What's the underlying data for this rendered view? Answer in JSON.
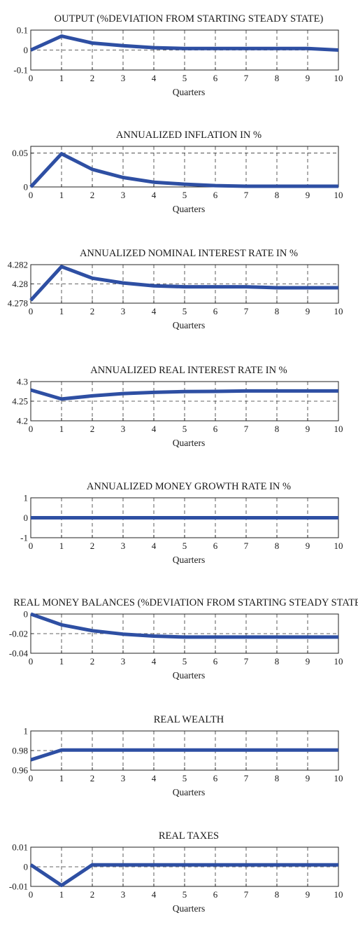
{
  "colors": {
    "line": "#2e4fa3",
    "axis": "#222222",
    "grid": "#333333"
  },
  "chart_data": [
    {
      "type": "line",
      "title": "OUTPUT (%DEVIATION FROM STARTING STEADY STATE)",
      "xlabel": "Quarters",
      "ylabel": "",
      "xlim": [
        0,
        10
      ],
      "ylim": [
        -0.1,
        0.1
      ],
      "xticks": [
        "0",
        "1",
        "2",
        "3",
        "4",
        "5",
        "6",
        "7",
        "8",
        "9",
        "10"
      ],
      "yticks": [
        "0.1",
        "0",
        "-0.1"
      ],
      "ytick_values": [
        0.1,
        0,
        -0.1
      ],
      "grid": true,
      "x": [
        0,
        1,
        2,
        3,
        4,
        5,
        6,
        7,
        8,
        9,
        10
      ],
      "series": [
        {
          "values": [
            0,
            0.07,
            0.035,
            0.022,
            0.012,
            0.008,
            0.008,
            0.008,
            0.008,
            0.008,
            0.0
          ]
        }
      ]
    },
    {
      "type": "line",
      "title": "ANNUALIZED INFLATION IN %",
      "xlabel": "Quarters",
      "ylabel": "",
      "xlim": [
        0,
        10
      ],
      "ylim": [
        0,
        0.06
      ],
      "xticks": [
        "0",
        "1",
        "2",
        "3",
        "4",
        "5",
        "6",
        "7",
        "8",
        "9",
        "10"
      ],
      "yticks": [
        "0.05",
        "0"
      ],
      "ytick_values": [
        0.05,
        0
      ],
      "grid": true,
      "x": [
        0,
        1,
        2,
        3,
        4,
        5,
        6,
        7,
        8,
        9,
        10
      ],
      "series": [
        {
          "values": [
            0,
            0.049,
            0.026,
            0.014,
            0.007,
            0.004,
            0.002,
            0.001,
            0.001,
            0.001,
            0.001
          ]
        }
      ]
    },
    {
      "type": "line",
      "title": "ANNUALIZED NOMINAL INTEREST RATE IN %",
      "xlabel": "Quarters",
      "ylabel": "",
      "xlim": [
        0,
        10
      ],
      "ylim": [
        4.278,
        4.282
      ],
      "xticks": [
        "0",
        "1",
        "2",
        "3",
        "4",
        "5",
        "6",
        "7",
        "8",
        "9",
        "10"
      ],
      "yticks": [
        "4.282",
        "4.28",
        "4.278"
      ],
      "ytick_values": [
        4.282,
        4.28,
        4.278
      ],
      "grid": true,
      "x": [
        0,
        1,
        2,
        3,
        4,
        5,
        6,
        7,
        8,
        9,
        10
      ],
      "series": [
        {
          "values": [
            4.2783,
            4.2818,
            4.2806,
            4.2801,
            4.2798,
            4.2797,
            4.2797,
            4.2797,
            4.2796,
            4.2796,
            4.2796
          ]
        }
      ]
    },
    {
      "type": "line",
      "title": "ANNUALIZED REAL INTEREST RATE IN %",
      "xlabel": "Quarters",
      "ylabel": "",
      "xlim": [
        0,
        10
      ],
      "ylim": [
        4.2,
        4.3
      ],
      "xticks": [
        "0",
        "1",
        "2",
        "3",
        "4",
        "5",
        "6",
        "7",
        "8",
        "9",
        "10"
      ],
      "yticks": [
        "4.3",
        "4.25",
        "4.2"
      ],
      "ytick_values": [
        4.3,
        4.25,
        4.2
      ],
      "grid": true,
      "x": [
        0,
        1,
        2,
        3,
        4,
        5,
        6,
        7,
        8,
        9,
        10
      ],
      "series": [
        {
          "values": [
            4.2785,
            4.2555,
            4.2635,
            4.2695,
            4.2725,
            4.2745,
            4.275,
            4.276,
            4.276,
            4.276,
            4.276
          ]
        }
      ]
    },
    {
      "type": "line",
      "title": "ANNUALIZED MONEY GROWTH RATE IN %",
      "xlabel": "Quarters",
      "ylabel": "",
      "xlim": [
        0,
        10
      ],
      "ylim": [
        -1,
        1
      ],
      "xticks": [
        "0",
        "1",
        "2",
        "3",
        "4",
        "5",
        "6",
        "7",
        "8",
        "9",
        "10"
      ],
      "yticks": [
        "1",
        "0",
        "-1"
      ],
      "ytick_values": [
        1,
        0,
        -1
      ],
      "grid": true,
      "x": [
        0,
        1,
        2,
        3,
        4,
        5,
        6,
        7,
        8,
        9,
        10
      ],
      "series": [
        {
          "values": [
            0,
            0,
            0,
            0,
            0,
            0,
            0,
            0,
            0,
            0,
            0
          ]
        }
      ]
    },
    {
      "type": "line",
      "title": "REAL MONEY BALANCES (%DEVIATION FROM STARTING STEADY STATE)",
      "xlabel": "Quarters",
      "ylabel": "",
      "xlim": [
        0,
        10
      ],
      "ylim": [
        -0.04,
        0.0
      ],
      "xticks": [
        "0",
        "1",
        "2",
        "3",
        "4",
        "5",
        "6",
        "7",
        "8",
        "9",
        "10"
      ],
      "yticks": [
        "0",
        "-0.02",
        "-0.04"
      ],
      "ytick_values": [
        0,
        -0.02,
        -0.04
      ],
      "grid": true,
      "x": [
        0,
        1,
        2,
        3,
        4,
        5,
        6,
        7,
        8,
        9,
        10
      ],
      "series": [
        {
          "values": [
            0,
            -0.011,
            -0.017,
            -0.0205,
            -0.0225,
            -0.0235,
            -0.0235,
            -0.0235,
            -0.0235,
            -0.0235,
            -0.0235
          ]
        }
      ]
    },
    {
      "type": "line",
      "title": "REAL WEALTH",
      "xlabel": "Quarters",
      "ylabel": "",
      "xlim": [
        0,
        10
      ],
      "ylim": [
        0.96,
        1.0
      ],
      "xticks": [
        "0",
        "1",
        "2",
        "3",
        "4",
        "5",
        "6",
        "7",
        "8",
        "9",
        "10"
      ],
      "yticks": [
        "1",
        "0.98",
        "0.96"
      ],
      "ytick_values": [
        1.0,
        0.98,
        0.96
      ],
      "grid": true,
      "x": [
        0,
        1,
        2,
        3,
        4,
        5,
        6,
        7,
        8,
        9,
        10
      ],
      "series": [
        {
          "values": [
            0.9705,
            0.9805,
            0.9805,
            0.9805,
            0.9805,
            0.9805,
            0.9805,
            0.9805,
            0.9805,
            0.9805,
            0.9805
          ]
        }
      ]
    },
    {
      "type": "line",
      "title": "REAL TAXES",
      "xlabel": "Quarters",
      "ylabel": "",
      "xlim": [
        0,
        10
      ],
      "ylim": [
        -0.01,
        0.01
      ],
      "xticks": [
        "0",
        "1",
        "2",
        "3",
        "4",
        "5",
        "6",
        "7",
        "8",
        "9",
        "10"
      ],
      "yticks": [
        "0.01",
        "0",
        "-0.01"
      ],
      "ytick_values": [
        0.01,
        0,
        -0.01
      ],
      "grid": true,
      "x": [
        0,
        1,
        2,
        3,
        4,
        5,
        6,
        7,
        8,
        9,
        10
      ],
      "series": [
        {
          "values": [
            0.001,
            -0.0095,
            0.001,
            0.001,
            0.001,
            0.001,
            0.001,
            0.001,
            0.001,
            0.001,
            0.001
          ]
        }
      ]
    }
  ]
}
